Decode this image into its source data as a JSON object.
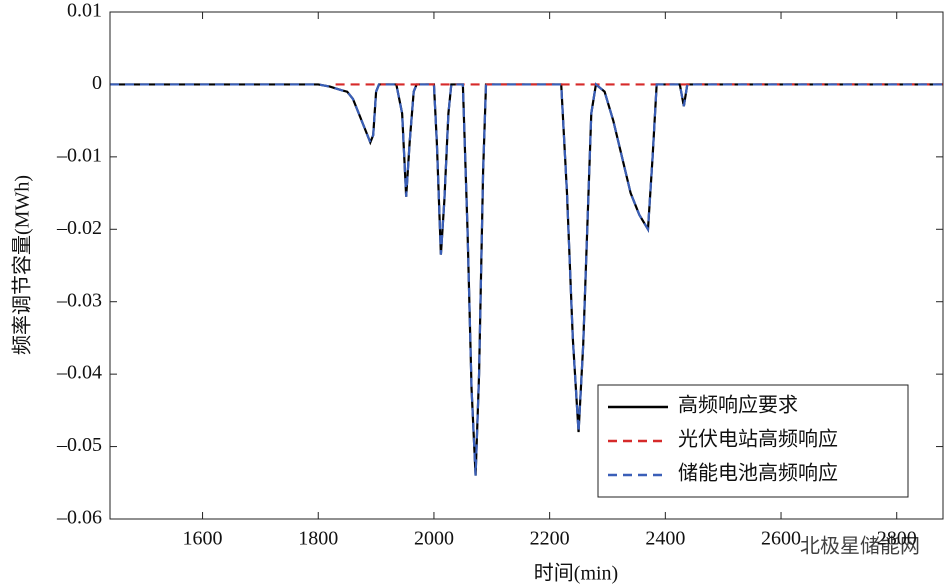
{
  "chart_data": {
    "type": "line",
    "x_label": "时间(min)",
    "y_label": "频率调节容量(MWh)",
    "watermark": "北极星储能网",
    "xlim": [
      1440,
      2880
    ],
    "ylim": [
      -0.06,
      0.01
    ],
    "xticks": [
      1600,
      1800,
      2000,
      2200,
      2400,
      2600,
      2800
    ],
    "yticks": [
      {
        "value": 0.01,
        "label": "0.01"
      },
      0,
      {
        "value": -0.01,
        "label": "–0.01"
      },
      {
        "value": -0.02,
        "label": "–0.02"
      },
      {
        "value": -0.03,
        "label": "–0.03"
      },
      {
        "value": -0.04,
        "label": "–0.04"
      },
      {
        "value": -0.05,
        "label": "–0.05"
      },
      {
        "value": -0.06,
        "label": "–0.06"
      }
    ],
    "legend": "lower right",
    "series": [
      {
        "name": "高频响应要求",
        "color": "#000000",
        "dash": "none",
        "x": [
          1440,
          1800,
          1820,
          1840,
          1850,
          1860,
          1870,
          1880,
          1890,
          1895,
          1900,
          1905,
          1935,
          1945,
          1952,
          1958,
          1965,
          1970,
          2000,
          2005,
          2012,
          2018,
          2025,
          2030,
          2050,
          2058,
          2065,
          2072,
          2078,
          2085,
          2090,
          2220,
          2230,
          2240,
          2250,
          2258,
          2265,
          2272,
          2280,
          2295,
          2310,
          2325,
          2340,
          2355,
          2370,
          2378,
          2385,
          2425,
          2432,
          2438,
          2880
        ],
        "values": [
          0,
          0,
          -0.0003,
          -0.0008,
          -0.001,
          -0.002,
          -0.004,
          -0.006,
          -0.008,
          -0.007,
          -0.001,
          0,
          0,
          -0.004,
          -0.0155,
          -0.008,
          -0.001,
          0,
          0,
          -0.008,
          -0.0235,
          -0.016,
          -0.004,
          0,
          0,
          -0.02,
          -0.042,
          -0.054,
          -0.04,
          -0.012,
          0,
          0,
          -0.015,
          -0.035,
          -0.048,
          -0.036,
          -0.02,
          -0.004,
          0,
          -0.001,
          -0.005,
          -0.01,
          -0.015,
          -0.018,
          -0.02,
          -0.01,
          0,
          0,
          -0.003,
          0,
          0
        ]
      },
      {
        "name": "光伏电站高频响应",
        "color": "#d62a2a",
        "dash": "9 6",
        "x": [
          1830,
          2880
        ],
        "values": [
          0,
          0
        ]
      },
      {
        "name": "储能电池高频响应",
        "color": "#3a5fb8",
        "dash": "9 6",
        "x": [
          1440,
          1800,
          1820,
          1840,
          1850,
          1860,
          1870,
          1880,
          1890,
          1895,
          1900,
          1905,
          1935,
          1945,
          1952,
          1958,
          1965,
          1970,
          2000,
          2005,
          2012,
          2018,
          2025,
          2030,
          2050,
          2058,
          2065,
          2072,
          2078,
          2085,
          2090,
          2220,
          2230,
          2240,
          2250,
          2258,
          2265,
          2272,
          2280,
          2295,
          2310,
          2325,
          2340,
          2355,
          2370,
          2378,
          2385,
          2425,
          2432,
          2438,
          2880
        ],
        "values": [
          0,
          0,
          -0.0003,
          -0.0008,
          -0.001,
          -0.002,
          -0.004,
          -0.006,
          -0.008,
          -0.007,
          -0.001,
          0,
          0,
          -0.004,
          -0.0155,
          -0.008,
          -0.001,
          0,
          0,
          -0.008,
          -0.0235,
          -0.016,
          -0.004,
          0,
          0,
          -0.02,
          -0.042,
          -0.054,
          -0.04,
          -0.012,
          0,
          0,
          -0.015,
          -0.035,
          -0.048,
          -0.036,
          -0.02,
          -0.004,
          0,
          -0.001,
          -0.005,
          -0.01,
          -0.015,
          -0.018,
          -0.02,
          -0.01,
          0,
          0,
          -0.003,
          0,
          0
        ]
      }
    ]
  }
}
